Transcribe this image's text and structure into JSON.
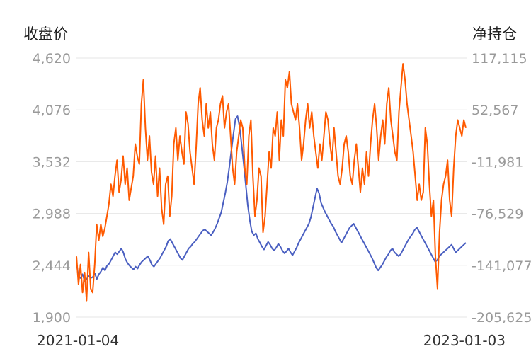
{
  "chart_data": {
    "type": "line",
    "left_axis_title": "收盘价",
    "right_axis_title": "净持仓",
    "left_ticks": [
      "4,620",
      "4,076",
      "3,532",
      "2,988",
      "2,444",
      "1,900"
    ],
    "right_ticks": [
      "117,115",
      "52,567",
      "-11,981",
      "-76,529",
      "-141,077",
      "-205,625"
    ],
    "left_range": [
      1900,
      4620
    ],
    "right_range": [
      -205625,
      117115
    ],
    "x_start_label": "2021-01-04",
    "x_end_label": "2023-01-03",
    "grid": true,
    "series": [
      {
        "axis": "left",
        "color": "#4a5fc1",
        "values": [
          2480,
          2320,
          2310,
          2350,
          2280,
          2300,
          2330,
          2310,
          2320,
          2360,
          2300,
          2350,
          2380,
          2420,
          2390,
          2440,
          2460,
          2500,
          2540,
          2580,
          2560,
          2590,
          2620,
          2580,
          2510,
          2470,
          2440,
          2420,
          2400,
          2430,
          2410,
          2450,
          2480,
          2500,
          2520,
          2540,
          2500,
          2450,
          2430,
          2460,
          2490,
          2520,
          2560,
          2600,
          2640,
          2700,
          2720,
          2680,
          2640,
          2600,
          2560,
          2520,
          2500,
          2540,
          2580,
          2620,
          2640,
          2670,
          2690,
          2720,
          2750,
          2780,
          2810,
          2820,
          2800,
          2780,
          2760,
          2790,
          2830,
          2880,
          2940,
          3000,
          3100,
          3200,
          3320,
          3480,
          3650,
          3820,
          3980,
          4010,
          3900,
          3720,
          3520,
          3300,
          3080,
          2920,
          2800,
          2760,
          2780,
          2720,
          2680,
          2640,
          2610,
          2650,
          2690,
          2660,
          2620,
          2600,
          2630,
          2670,
          2640,
          2600,
          2570,
          2590,
          2620,
          2580,
          2550,
          2590,
          2630,
          2680,
          2720,
          2760,
          2800,
          2840,
          2880,
          2950,
          3050,
          3150,
          3250,
          3200,
          3100,
          3050,
          3000,
          2960,
          2920,
          2880,
          2850,
          2800,
          2760,
          2720,
          2680,
          2720,
          2760,
          2800,
          2840,
          2860,
          2880,
          2840,
          2800,
          2760,
          2720,
          2680,
          2640,
          2600,
          2560,
          2520,
          2470,
          2420,
          2390,
          2420,
          2450,
          2490,
          2530,
          2560,
          2600,
          2620,
          2580,
          2560,
          2540,
          2560,
          2600,
          2640,
          2680,
          2720,
          2750,
          2780,
          2820,
          2840,
          2800,
          2760,
          2720,
          2680,
          2640,
          2600,
          2560,
          2520,
          2480,
          2500,
          2540,
          2560,
          2580,
          2600,
          2620,
          2640,
          2660,
          2620,
          2580,
          2600,
          2620,
          2640,
          2660,
          2680
        ]
      },
      {
        "axis": "right",
        "color": "#ff5a00",
        "values": [
          -130000,
          -165000,
          -140000,
          -175000,
          -150000,
          -185000,
          -125000,
          -170000,
          -175000,
          -140000,
          -90000,
          -110000,
          -90000,
          -105000,
          -95000,
          -80000,
          -65000,
          -40000,
          -55000,
          -30000,
          -10000,
          -50000,
          -35000,
          -5000,
          -40000,
          -20000,
          -60000,
          -45000,
          -30000,
          10000,
          -5000,
          -15000,
          60000,
          90000,
          30000,
          -10000,
          20000,
          -25000,
          -40000,
          -5000,
          -55000,
          -20000,
          -70000,
          -90000,
          -40000,
          -30000,
          -80000,
          -55000,
          10000,
          30000,
          -10000,
          20000,
          0,
          -15000,
          50000,
          35000,
          0,
          -20000,
          -40000,
          5000,
          60000,
          80000,
          40000,
          20000,
          60000,
          30000,
          50000,
          10000,
          -10000,
          30000,
          40000,
          60000,
          70000,
          30000,
          50000,
          60000,
          20000,
          -20000,
          -40000,
          0,
          20000,
          40000,
          30000,
          -20000,
          -40000,
          20000,
          40000,
          -30000,
          -80000,
          -60000,
          -20000,
          -30000,
          -100000,
          -80000,
          -40000,
          0,
          -20000,
          30000,
          20000,
          50000,
          -10000,
          40000,
          20000,
          90000,
          80000,
          100000,
          60000,
          50000,
          40000,
          60000,
          30000,
          -10000,
          10000,
          40000,
          60000,
          30000,
          50000,
          20000,
          0,
          -20000,
          10000,
          -10000,
          20000,
          50000,
          40000,
          10000,
          -10000,
          30000,
          0,
          -30000,
          -40000,
          -20000,
          10000,
          20000,
          0,
          -30000,
          -40000,
          -10000,
          10000,
          -20000,
          -50000,
          -20000,
          -40000,
          0,
          -30000,
          10000,
          40000,
          60000,
          30000,
          -10000,
          20000,
          40000,
          10000,
          60000,
          80000,
          40000,
          20000,
          0,
          -10000,
          50000,
          80000,
          110000,
          90000,
          60000,
          40000,
          20000,
          0,
          -30000,
          -60000,
          -40000,
          -60000,
          -50000,
          30000,
          10000,
          -40000,
          -80000,
          -60000,
          -130000,
          -170000,
          -100000,
          -60000,
          -40000,
          -30000,
          -10000,
          -60000,
          -80000,
          -20000,
          20000,
          40000,
          30000,
          20000,
          40000,
          30000
        ]
      }
    ]
  }
}
